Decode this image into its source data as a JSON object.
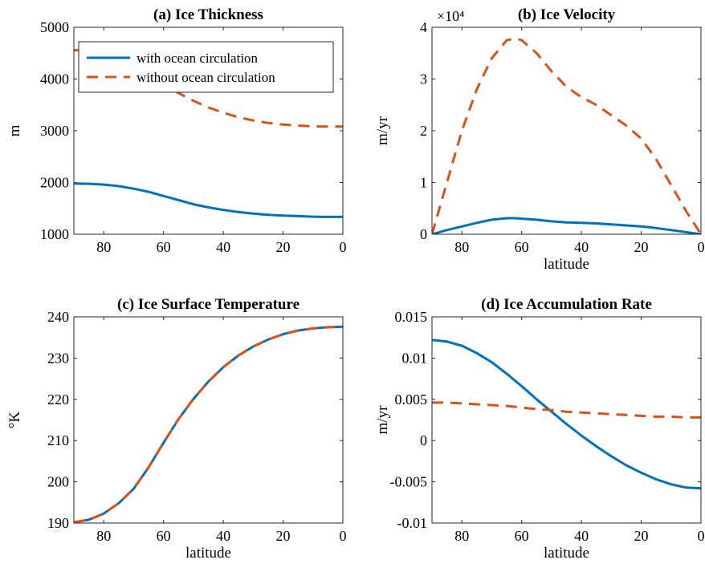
{
  "colors": {
    "with": "#0072BD",
    "without": "#D95319"
  },
  "legend": {
    "items": [
      {
        "label": "with ocean circulation",
        "style": "solid",
        "color": "#0072BD"
      },
      {
        "label": "without ocean circulation",
        "style": "dashed",
        "color": "#D95319"
      }
    ],
    "location": "top-right of panel (a)"
  },
  "chart_data": [
    {
      "type": "line",
      "title": "(a) Ice Thickness",
      "xlabel": "",
      "ylabel": "m",
      "xlim": [
        90,
        0
      ],
      "ylim": [
        1000,
        5000
      ],
      "xticks": [
        80,
        60,
        40,
        20,
        0
      ],
      "yticks": [
        1000,
        2000,
        3000,
        4000,
        5000
      ],
      "ytick_labels": [
        "1000",
        "2000",
        "3000",
        "4000",
        "5000"
      ],
      "exponent_label": "",
      "x": [
        90,
        85,
        80,
        75,
        70,
        65,
        60,
        55,
        50,
        45,
        40,
        35,
        30,
        25,
        20,
        15,
        10,
        5,
        0
      ],
      "series": [
        {
          "name": "with ocean circulation",
          "style": "solid",
          "values": [
            1980,
            1975,
            1960,
            1930,
            1880,
            1820,
            1740,
            1660,
            1580,
            1520,
            1470,
            1430,
            1400,
            1375,
            1360,
            1350,
            1340,
            1335,
            1335
          ]
        },
        {
          "name": "without ocean circulation",
          "style": "dashed",
          "values": [
            4560,
            4540,
            4480,
            4380,
            4200,
            4060,
            3900,
            3730,
            3580,
            3450,
            3350,
            3260,
            3200,
            3150,
            3120,
            3100,
            3085,
            3080,
            3080
          ]
        }
      ]
    },
    {
      "type": "line",
      "title": "(b) Ice Velocity",
      "xlabel": "latitude",
      "ylabel": "m/yr",
      "xlim": [
        90,
        0
      ],
      "ylim": [
        0,
        40000
      ],
      "xticks": [
        80,
        60,
        40,
        20,
        0
      ],
      "yticks": [
        0,
        10000,
        20000,
        30000,
        40000
      ],
      "ytick_labels": [
        "0",
        "1",
        "2",
        "3",
        "4"
      ],
      "exponent_label": "×10⁴",
      "x": [
        90,
        85,
        80,
        75,
        70,
        65,
        62,
        60,
        55,
        50,
        45,
        40,
        35,
        30,
        25,
        20,
        15,
        10,
        5,
        0
      ],
      "series": [
        {
          "name": "with ocean circulation",
          "style": "solid",
          "values": [
            0,
            800,
            1500,
            2200,
            2800,
            3100,
            3100,
            3000,
            2800,
            2500,
            2300,
            2200,
            2100,
            1900,
            1700,
            1500,
            1200,
            800,
            400,
            0
          ]
        },
        {
          "name": "without ocean circulation",
          "style": "dashed",
          "values": [
            0,
            10000,
            20000,
            28000,
            34000,
            37500,
            37800,
            37500,
            35000,
            31500,
            28500,
            26500,
            25000,
            23000,
            21000,
            18500,
            14500,
            9500,
            4500,
            0
          ]
        }
      ]
    },
    {
      "type": "line",
      "title": "(c) Ice Surface Temperature",
      "xlabel": "latitude",
      "ylabel": "°K",
      "xlim": [
        90,
        0
      ],
      "ylim": [
        190,
        240
      ],
      "xticks": [
        80,
        60,
        40,
        20,
        0
      ],
      "yticks": [
        190,
        200,
        210,
        220,
        230,
        240
      ],
      "ytick_labels": [
        "190",
        "200",
        "210",
        "220",
        "230",
        "240"
      ],
      "exponent_label": "",
      "x": [
        90,
        85,
        80,
        75,
        70,
        65,
        60,
        55,
        50,
        45,
        40,
        35,
        30,
        25,
        20,
        15,
        10,
        5,
        0
      ],
      "series": [
        {
          "name": "with ocean circulation",
          "style": "solid",
          "values": [
            190.2,
            190.8,
            192.3,
            194.8,
            198.3,
            203.5,
            209.5,
            215.2,
            220.1,
            224.3,
            227.8,
            230.6,
            232.8,
            234.5,
            235.8,
            236.7,
            237.2,
            237.5,
            237.6
          ]
        },
        {
          "name": "without ocean circulation",
          "style": "dashed",
          "values": [
            190.2,
            190.8,
            192.3,
            194.8,
            198.3,
            203.5,
            209.5,
            215.2,
            220.1,
            224.3,
            227.8,
            230.6,
            232.8,
            234.5,
            235.8,
            236.7,
            237.2,
            237.5,
            237.6
          ]
        }
      ]
    },
    {
      "type": "line",
      "title": "(d) Ice Accumulation Rate",
      "xlabel": "latitude",
      "ylabel": "m/yr",
      "xlim": [
        90,
        0
      ],
      "ylim": [
        -0.01,
        0.015
      ],
      "xticks": [
        80,
        60,
        40,
        20,
        0
      ],
      "yticks": [
        -0.01,
        -0.005,
        0,
        0.005,
        0.01,
        0.015
      ],
      "ytick_labels": [
        "-0.01",
        "-0.005",
        "0",
        "0.005",
        "0.01",
        "0.015"
      ],
      "exponent_label": "",
      "x": [
        90,
        85,
        80,
        75,
        70,
        65,
        60,
        55,
        50,
        45,
        40,
        35,
        30,
        25,
        20,
        15,
        10,
        5,
        0
      ],
      "series": [
        {
          "name": "with ocean circulation",
          "style": "solid",
          "values": [
            0.0122,
            0.012,
            0.0115,
            0.0106,
            0.0095,
            0.0081,
            0.0066,
            0.005,
            0.0035,
            0.002,
            0.0006,
            -0.0007,
            -0.0019,
            -0.003,
            -0.0039,
            -0.0047,
            -0.0053,
            -0.0057,
            -0.0058
          ]
        },
        {
          "name": "without ocean circulation",
          "style": "dashed",
          "values": [
            0.0046,
            0.0046,
            0.0045,
            0.0044,
            0.0043,
            0.0042,
            0.004,
            0.0038,
            0.0037,
            0.0035,
            0.0034,
            0.0033,
            0.0032,
            0.0031,
            0.003,
            0.0029,
            0.0029,
            0.0028,
            0.0028
          ]
        }
      ]
    }
  ]
}
